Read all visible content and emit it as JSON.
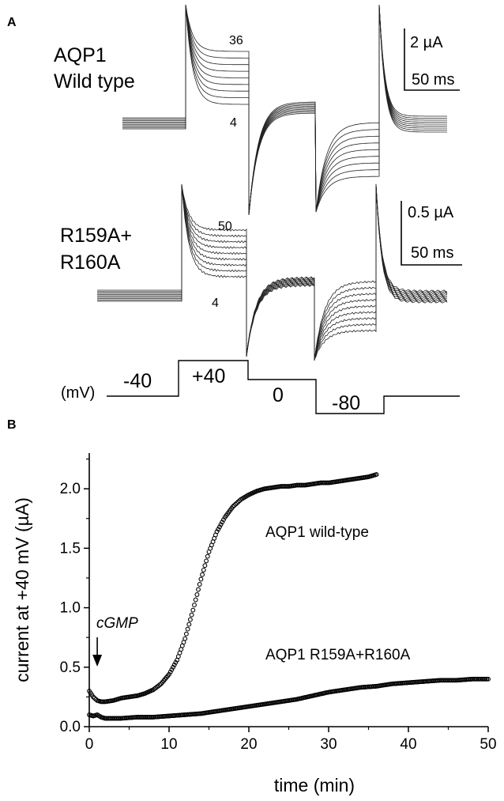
{
  "panel_a": {
    "label": "A",
    "wt_label_line1": "AQP1",
    "wt_label_line2": "Wild type",
    "wt_high": "36",
    "wt_low": "4",
    "wt_scale_current": "2 µA",
    "wt_scale_time": "50 ms",
    "mut_label_line1": "R159A+",
    "mut_label_line2": "R160A",
    "mut_high": "50",
    "mut_low": "4",
    "mut_scale_current": "0.5 µA",
    "mut_scale_time": "50 ms",
    "protocol_unit": "(mV)",
    "protocol_steps": [
      "-40",
      "+40",
      "0",
      "-80"
    ]
  },
  "panel_b": {
    "label": "B"
  },
  "chart_data": {
    "type": "scatter",
    "xlabel": "time (min)",
    "ylabel": "current at +40 mV (µA)",
    "xlim": [
      0,
      50
    ],
    "ylim": [
      0,
      2.3
    ],
    "xticks": [
      "0",
      "10",
      "20",
      "30",
      "40",
      "50"
    ],
    "yticks": [
      "0.0",
      "0.5",
      "1.0",
      "1.5",
      "2.0"
    ],
    "arrow_label": "cGMP",
    "arrow_time": 1,
    "series": [
      {
        "name": "AQP1 wild-type",
        "x": [
          0,
          0.5,
          1,
          1.5,
          2,
          3,
          4,
          5,
          6,
          7,
          8,
          9,
          10,
          11,
          12,
          13,
          14,
          15,
          16,
          17,
          18,
          19,
          20,
          21,
          22,
          23,
          24,
          25,
          26,
          27,
          28,
          29,
          30,
          31,
          32,
          33,
          34,
          35,
          36
        ],
        "y": [
          0.3,
          0.25,
          0.22,
          0.21,
          0.21,
          0.22,
          0.24,
          0.25,
          0.26,
          0.28,
          0.31,
          0.36,
          0.44,
          0.56,
          0.74,
          0.98,
          1.24,
          1.47,
          1.64,
          1.76,
          1.85,
          1.91,
          1.95,
          1.98,
          2.0,
          2.01,
          2.02,
          2.02,
          2.03,
          2.03,
          2.04,
          2.05,
          2.05,
          2.06,
          2.07,
          2.08,
          2.09,
          2.1,
          2.12
        ]
      },
      {
        "name": "AQP1 R159A+R160A",
        "x": [
          0,
          0.5,
          1,
          1.5,
          2,
          4,
          6,
          8,
          10,
          12,
          14,
          16,
          18,
          20,
          22,
          24,
          26,
          28,
          30,
          32,
          34,
          36,
          38,
          40,
          42,
          44,
          46,
          48,
          50
        ],
        "y": [
          0.1,
          0.09,
          0.1,
          0.08,
          0.07,
          0.07,
          0.08,
          0.08,
          0.09,
          0.1,
          0.11,
          0.13,
          0.15,
          0.17,
          0.19,
          0.21,
          0.23,
          0.26,
          0.29,
          0.31,
          0.33,
          0.34,
          0.36,
          0.37,
          0.38,
          0.39,
          0.39,
          0.4,
          0.4
        ]
      }
    ]
  }
}
